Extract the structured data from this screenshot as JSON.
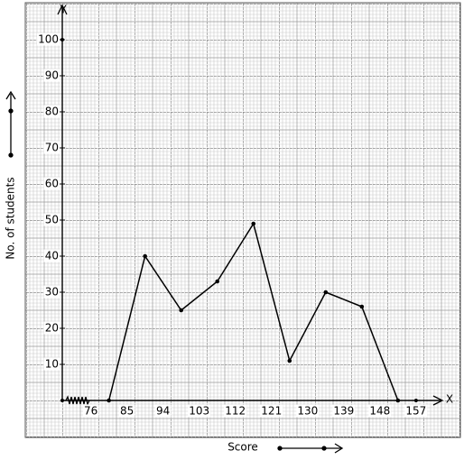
{
  "chart_data": {
    "type": "line",
    "x_label": "Score",
    "y_label": "No. of students",
    "x_axis_letter": "X",
    "y_axis_letter": "Y",
    "x": [
      80.5,
      89.5,
      98.5,
      107.5,
      116.5,
      125.5,
      134.5,
      143.5,
      152.5
    ],
    "series": [
      {
        "color": "#000000",
        "values": [
          0,
          40,
          25,
          33,
          49,
          11,
          30,
          26,
          0
        ]
      }
    ],
    "xlim": [
      67,
      162
    ],
    "xticks": [
      76,
      85,
      94,
      103,
      112,
      121,
      130,
      139,
      148,
      157
    ],
    "ylim": [
      0,
      110
    ],
    "yticks": [
      10,
      20,
      30,
      40,
      50,
      60,
      70,
      80,
      90,
      100
    ],
    "grid": true
  }
}
